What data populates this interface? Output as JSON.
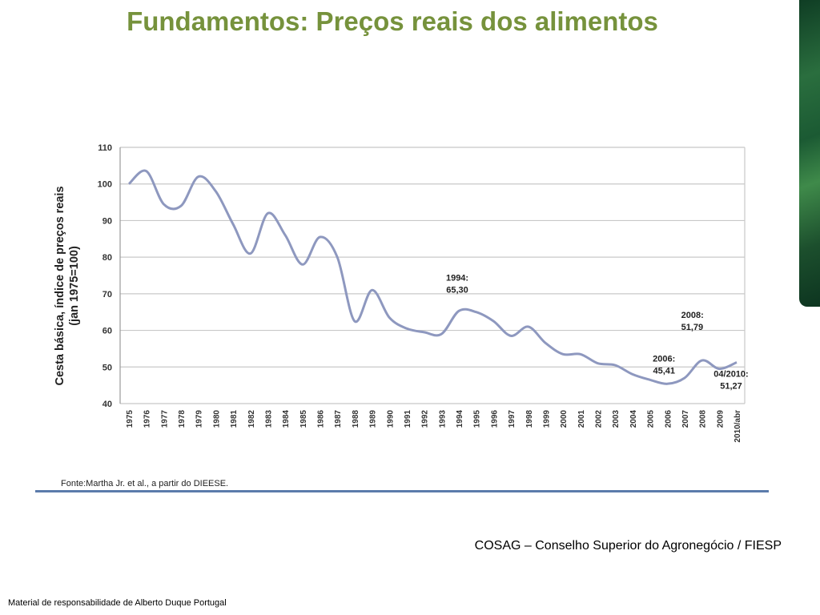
{
  "slide": {
    "title": "Fundamentos: Preços reais dos alimentos",
    "caption": "COSAG – Conselho Superior do Agronegócio / FIESP",
    "footer": "Material de responsabilidade de Alberto Duque Portugal"
  },
  "colors": {
    "title": "#76923c",
    "line": "#8e98bf",
    "grid": "#c8c8c8",
    "rule": "#5b7bab"
  },
  "chart_data": {
    "type": "line",
    "title": "",
    "ylabel_lines": [
      "Cesta básica, índice de preços reais",
      "(jan 1975=100)"
    ],
    "xlabel": "",
    "ylim": [
      40,
      110
    ],
    "yticks": [
      40,
      50,
      60,
      70,
      80,
      90,
      100,
      110
    ],
    "grid": true,
    "categories": [
      "1975",
      "1976",
      "1977",
      "1978",
      "1979",
      "1980",
      "1981",
      "1982",
      "1983",
      "1984",
      "1985",
      "1986",
      "1987",
      "1988",
      "1989",
      "1990",
      "1991",
      "1992",
      "1993",
      "1994",
      "1995",
      "1996",
      "1997",
      "1998",
      "1999",
      "2000",
      "2001",
      "2002",
      "2003",
      "2004",
      "2005",
      "2006",
      "2007",
      "2008",
      "2009",
      "2010/abr"
    ],
    "series": [
      {
        "values": [
          100,
          103.5,
          94.5,
          94,
          102,
          98,
          89,
          81,
          92,
          86,
          78,
          85.5,
          80,
          62.5,
          71,
          63.5,
          60.5,
          59.5,
          59,
          65.3,
          65,
          62.5,
          58.5,
          61,
          56.5,
          53.5,
          53.5,
          51,
          50.5,
          48,
          46.5,
          45.41,
          47,
          51.79,
          49.5,
          51.27
        ]
      }
    ],
    "annotations": [
      {
        "category": "1994",
        "lines": [
          "1994:",
          "65,30"
        ]
      },
      {
        "category": "2006",
        "lines": [
          "2006:",
          "45,41"
        ]
      },
      {
        "category": "2008",
        "lines": [
          "2008:",
          "51,79"
        ]
      },
      {
        "category": "2010/abr",
        "lines": [
          "04/2010:",
          "51,27"
        ]
      }
    ],
    "source": "Fonte:Martha Jr. et al., a partir do DIEESE."
  }
}
